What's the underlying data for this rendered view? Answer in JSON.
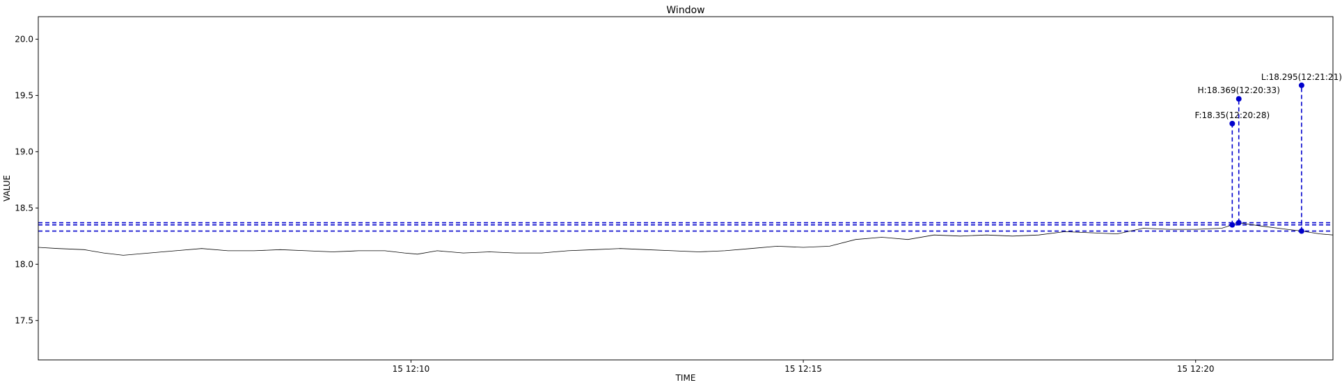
{
  "chart_data": {
    "type": "line",
    "title": "Window",
    "xlabel": "TIME",
    "ylabel": "VALUE",
    "x_range": [
      "12:05:15",
      "12:21:45"
    ],
    "ylim": [
      17.15,
      20.2
    ],
    "y_ticks": [
      17.5,
      18.0,
      18.5,
      19.0,
      19.5,
      20.0
    ],
    "y_tick_labels": [
      "17.5",
      "18.0",
      "18.5",
      "19.0",
      "19.5",
      "20.0"
    ],
    "x_ticks": [
      "12:10:00",
      "12:15:00",
      "12:20:00"
    ],
    "x_tick_labels": [
      "15 12:10",
      "15 12:15",
      "15 12:20"
    ],
    "grid": false,
    "series": [
      {
        "color": "#000000",
        "x": [
          "12:05:15",
          "12:05:30",
          "12:05:50",
          "12:06:05",
          "12:06:20",
          "12:06:40",
          "12:07:00",
          "12:07:20",
          "12:07:40",
          "12:08:00",
          "12:08:20",
          "12:08:40",
          "12:09:00",
          "12:09:20",
          "12:09:40",
          "12:09:55",
          "12:10:05",
          "12:10:20",
          "12:10:40",
          "12:11:00",
          "12:11:20",
          "12:11:40",
          "12:12:00",
          "12:12:20",
          "12:12:40",
          "12:13:00",
          "12:13:20",
          "12:13:40",
          "12:14:00",
          "12:14:20",
          "12:14:40",
          "12:15:00",
          "12:15:20",
          "12:15:40",
          "12:16:00",
          "12:16:20",
          "12:16:40",
          "12:17:00",
          "12:17:20",
          "12:17:40",
          "12:18:00",
          "12:18:20",
          "12:18:40",
          "12:19:00",
          "12:19:20",
          "12:19:40",
          "12:20:00",
          "12:20:20",
          "12:20:28",
          "12:20:33",
          "12:20:50",
          "12:21:10",
          "12:21:21",
          "12:21:35",
          "12:21:45"
        ],
        "y": [
          18.15,
          18.14,
          18.13,
          18.1,
          18.08,
          18.1,
          18.12,
          18.14,
          18.12,
          18.12,
          18.13,
          18.12,
          18.11,
          18.12,
          18.12,
          18.1,
          18.09,
          18.12,
          18.1,
          18.11,
          18.1,
          18.1,
          18.12,
          18.13,
          18.14,
          18.13,
          18.12,
          18.11,
          18.12,
          18.14,
          18.16,
          18.15,
          18.16,
          18.22,
          18.24,
          18.22,
          18.26,
          18.25,
          18.26,
          18.25,
          18.26,
          18.29,
          18.28,
          18.27,
          18.32,
          18.31,
          18.31,
          18.32,
          18.35,
          18.369,
          18.34,
          18.31,
          18.295,
          18.27,
          18.26
        ]
      }
    ],
    "hlines": [
      {
        "y": 18.369,
        "color": "#0000cc",
        "style": "dashed"
      },
      {
        "y": 18.35,
        "color": "#0000cc",
        "style": "dashed"
      },
      {
        "y": 18.295,
        "color": "#0000cc",
        "style": "dashed"
      }
    ],
    "annotations": [
      {
        "label": "F:18.35(12:20:28)",
        "x": "12:20:28",
        "y_base": 18.35,
        "y_tip": 19.25,
        "color": "#0000cc"
      },
      {
        "label": "H:18.369(12:20:33)",
        "x": "12:20:33",
        "y_base": 18.369,
        "y_tip": 19.47,
        "color": "#0000cc"
      },
      {
        "label": "L:18.295(12:21:21)",
        "x": "12:21:21",
        "y_base": 18.295,
        "y_tip": 19.59,
        "color": "#0000cc"
      }
    ]
  }
}
